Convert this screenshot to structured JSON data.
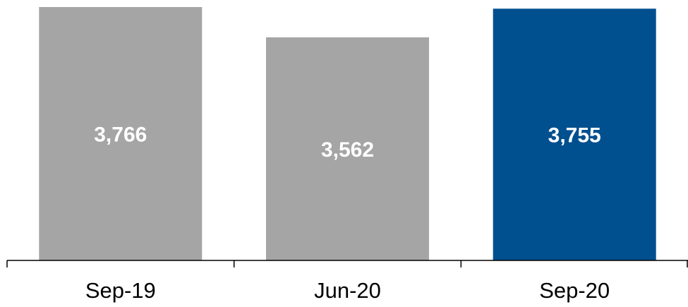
{
  "chart_data": {
    "type": "bar",
    "categories": [
      "Sep-19",
      "Jun-20",
      "Sep-20"
    ],
    "values": [
      3766,
      3562,
      3755
    ],
    "value_labels": [
      "3,766",
      "3,562",
      "3,755"
    ],
    "colors": [
      "#a5a5a5",
      "#a5a5a5",
      "#004f8f"
    ],
    "title": "",
    "xlabel": "",
    "ylabel": "",
    "grid": false,
    "legend": "none"
  }
}
